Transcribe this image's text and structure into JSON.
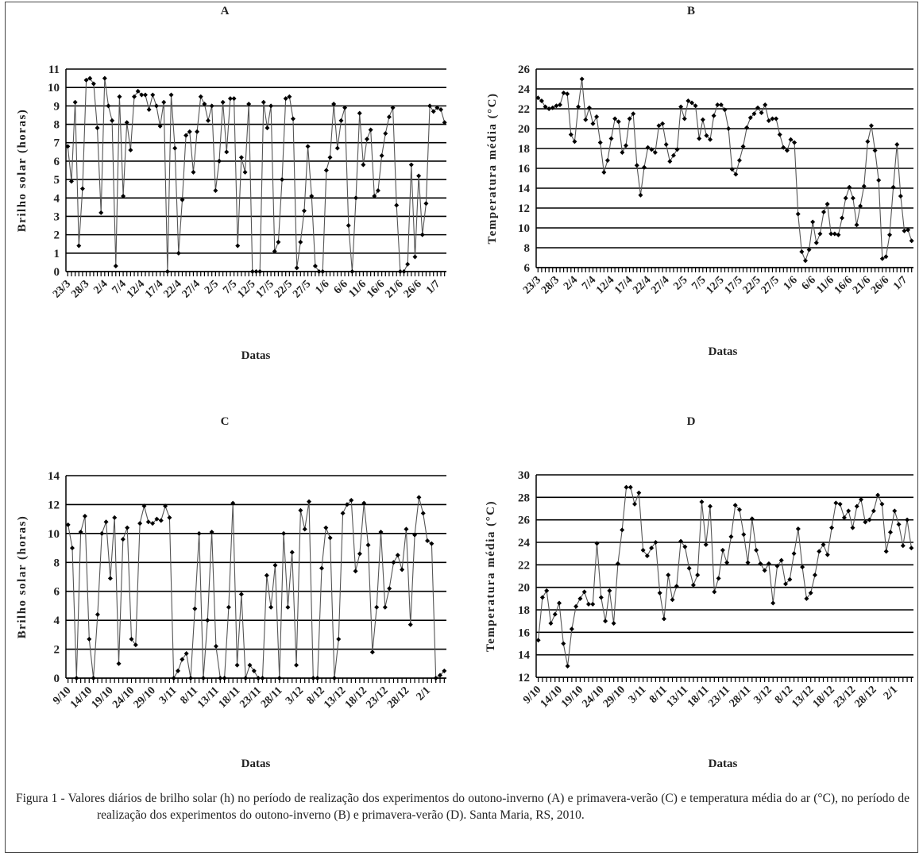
{
  "chart_data": [
    {
      "type": "line",
      "title": "A",
      "ylabel": "Brilho solar (horas)",
      "xlabel": "Datas",
      "categories": [
        "23/3",
        null,
        null,
        null,
        null,
        "28/3",
        null,
        null,
        null,
        null,
        "2/4",
        null,
        null,
        null,
        null,
        "7/4",
        null,
        null,
        null,
        null,
        "12/4",
        null,
        null,
        null,
        null,
        "17/4",
        null,
        null,
        null,
        null,
        "22/4",
        null,
        null,
        null,
        null,
        "27/4",
        null,
        null,
        null,
        null,
        "2/5",
        null,
        null,
        null,
        null,
        "7/5",
        null,
        null,
        null,
        null,
        "12/5",
        null,
        null,
        null,
        null,
        "17/5",
        null,
        null,
        null,
        null,
        "22/5",
        null,
        null,
        null,
        null,
        "27/5",
        null,
        null,
        null,
        null,
        "1/6",
        null,
        null,
        null,
        null,
        "6/6",
        null,
        null,
        null,
        null,
        "11/6",
        null,
        null,
        null,
        null,
        "16/6",
        null,
        null,
        null,
        null,
        "21/6",
        null,
        null,
        null,
        null,
        "26/6",
        null,
        null,
        null,
        null,
        "1/7",
        null,
        null
      ],
      "values": [
        6.8,
        4.9,
        9.2,
        1.4,
        4.5,
        10.4,
        10.5,
        10.2,
        7.8,
        3.2,
        10.5,
        9.0,
        8.2,
        0.3,
        9.5,
        4.1,
        8.1,
        6.6,
        9.5,
        9.8,
        9.6,
        9.6,
        8.8,
        9.6,
        9.0,
        7.9,
        9.2,
        0.0,
        9.6,
        6.7,
        1.0,
        3.9,
        7.4,
        7.6,
        5.4,
        7.6,
        9.5,
        9.1,
        8.2,
        9.0,
        4.4,
        6.0,
        9.2,
        6.5,
        9.4,
        9.4,
        1.4,
        6.2,
        5.4,
        9.1,
        0.0,
        0.0,
        0.0,
        9.2,
        7.8,
        9.0,
        1.1,
        1.6,
        5.0,
        9.4,
        9.5,
        8.3,
        0.2,
        1.6,
        3.3,
        6.8,
        4.1,
        0.3,
        0.0,
        0.0,
        5.5,
        6.2,
        9.1,
        6.7,
        8.2,
        8.9,
        2.5,
        0.0,
        4.0,
        8.6,
        5.8,
        7.2,
        7.7,
        4.1,
        4.4,
        6.3,
        7.5,
        8.4,
        8.9,
        3.6,
        0.0,
        0.0,
        0.4,
        5.8,
        0.8,
        5.2,
        2.0,
        3.7,
        9.0,
        8.7,
        8.9,
        8.8,
        8.1
      ],
      "color": "#555555",
      "marker_color": "#000000",
      "ylim": [
        0,
        11
      ],
      "yticks": [
        0,
        1,
        2,
        3,
        4,
        5,
        6,
        7,
        8,
        9,
        10,
        11
      ],
      "grid": true
    },
    {
      "type": "line",
      "title": "B",
      "ylabel": "Temperatura média (°C)",
      "xlabel": "Datas",
      "categories": [
        "23/3",
        null,
        null,
        null,
        null,
        "28/3",
        null,
        null,
        null,
        null,
        "2/4",
        null,
        null,
        null,
        null,
        "7/4",
        null,
        null,
        null,
        null,
        "12/4",
        null,
        null,
        null,
        null,
        "17/4",
        null,
        null,
        null,
        null,
        "22/4",
        null,
        null,
        null,
        null,
        "27/4",
        null,
        null,
        null,
        null,
        "2/5",
        null,
        null,
        null,
        null,
        "7/5",
        null,
        null,
        null,
        null,
        "12/5",
        null,
        null,
        null,
        null,
        "17/5",
        null,
        null,
        null,
        null,
        "22/5",
        null,
        null,
        null,
        null,
        "27/5",
        null,
        null,
        null,
        null,
        "1/6",
        null,
        null,
        null,
        null,
        "6/6",
        null,
        null,
        null,
        null,
        "11/6",
        null,
        null,
        null,
        null,
        "16/6",
        null,
        null,
        null,
        null,
        "21/6",
        null,
        null,
        null,
        null,
        "26/6",
        null,
        null,
        null,
        null,
        "1/7",
        null,
        null
      ],
      "values": [
        23.1,
        22.8,
        22.2,
        22.0,
        22.1,
        22.3,
        22.4,
        23.6,
        23.5,
        19.4,
        18.7,
        22.2,
        25.0,
        20.9,
        22.1,
        20.5,
        21.2,
        18.6,
        15.6,
        16.8,
        19.0,
        21.0,
        20.7,
        17.6,
        18.3,
        21.0,
        21.5,
        16.3,
        13.3,
        16.1,
        18.1,
        17.9,
        17.6,
        20.3,
        20.5,
        18.4,
        16.7,
        17.3,
        17.9,
        22.2,
        21.0,
        22.8,
        22.6,
        22.3,
        19.0,
        20.9,
        19.3,
        18.9,
        21.3,
        22.4,
        22.4,
        21.9,
        20.0,
        15.9,
        15.4,
        16.8,
        18.2,
        20.1,
        21.1,
        21.5,
        22.1,
        21.6,
        22.4,
        20.8,
        21.0,
        21.0,
        19.4,
        18.1,
        17.8,
        18.9,
        18.6,
        11.4,
        7.6,
        6.7,
        7.8,
        10.6,
        8.5,
        9.4,
        11.6,
        12.4,
        9.4,
        9.4,
        9.3,
        11.0,
        13.0,
        14.1,
        13.0,
        10.3,
        12.2,
        14.2,
        18.7,
        20.3,
        17.8,
        14.8,
        6.9,
        7.1,
        9.3,
        14.1,
        18.4,
        13.2,
        9.7,
        9.8,
        8.7
      ],
      "color": "#555555",
      "marker_color": "#000000",
      "ylim": [
        6,
        26
      ],
      "yticks": [
        6,
        8,
        10,
        12,
        14,
        16,
        18,
        20,
        22,
        24,
        26
      ],
      "grid": true
    },
    {
      "type": "line",
      "title": "C",
      "ylabel": "Brilho solar (horas)",
      "xlabel": "Datas",
      "categories": [
        "9/10",
        null,
        null,
        null,
        null,
        "14/10",
        null,
        null,
        null,
        null,
        "19/10",
        null,
        null,
        null,
        null,
        "24/10",
        null,
        null,
        null,
        null,
        "29/10",
        null,
        null,
        null,
        null,
        "3/11",
        null,
        null,
        null,
        null,
        "8/11",
        null,
        null,
        null,
        null,
        "13/11",
        null,
        null,
        null,
        null,
        "18/11",
        null,
        null,
        null,
        null,
        "23/11",
        null,
        null,
        null,
        null,
        "28/11",
        null,
        null,
        null,
        null,
        "3/12",
        null,
        null,
        null,
        null,
        "8/12",
        null,
        null,
        null,
        null,
        "13/12",
        null,
        null,
        null,
        null,
        "18/12",
        null,
        null,
        null,
        null,
        "23/12",
        null,
        null,
        null,
        null,
        "28/12",
        null,
        null,
        null,
        null,
        "2/1",
        null,
        null,
        null,
        null
      ],
      "values": [
        10.6,
        9.0,
        0.0,
        10.1,
        11.2,
        2.7,
        0.0,
        4.4,
        10.0,
        10.8,
        6.9,
        11.1,
        1.0,
        9.6,
        10.4,
        2.7,
        2.3,
        10.7,
        11.9,
        10.8,
        10.7,
        11.0,
        10.9,
        11.9,
        11.1,
        0.0,
        0.5,
        1.3,
        1.7,
        0.0,
        4.8,
        10.0,
        0.0,
        4.0,
        10.1,
        2.2,
        0.0,
        0.0,
        4.9,
        12.1,
        0.9,
        5.8,
        0.0,
        0.9,
        0.5,
        0.0,
        0.0,
        7.1,
        4.9,
        7.8,
        0.0,
        10.0,
        4.9,
        8.7,
        0.9,
        11.6,
        10.3,
        12.2,
        0.0,
        0.0,
        7.6,
        10.4,
        9.7,
        0.0,
        2.7,
        11.4,
        12.0,
        12.3,
        7.4,
        8.6,
        12.1,
        9.2,
        1.8,
        4.9,
        10.1,
        4.9,
        6.2,
        8.0,
        8.5,
        7.5,
        10.3,
        3.7,
        9.9,
        12.5,
        11.4,
        9.5,
        9.3,
        0.0,
        0.2,
        0.5
      ],
      "color": "#555555",
      "marker_color": "#000000",
      "ylim": [
        0,
        14
      ],
      "yticks": [
        0,
        2,
        4,
        6,
        8,
        10,
        12,
        14
      ],
      "grid": true
    },
    {
      "type": "line",
      "title": "D",
      "ylabel": "Temperatura média (°C)",
      "xlabel": "Datas",
      "categories": [
        "9/10",
        null,
        null,
        null,
        null,
        "14/10",
        null,
        null,
        null,
        null,
        "19/10",
        null,
        null,
        null,
        null,
        "24/10",
        null,
        null,
        null,
        null,
        "29/10",
        null,
        null,
        null,
        null,
        "3/11",
        null,
        null,
        null,
        null,
        "8/11",
        null,
        null,
        null,
        null,
        "13/11",
        null,
        null,
        null,
        null,
        "18/11",
        null,
        null,
        null,
        null,
        "23/11",
        null,
        null,
        null,
        null,
        "28/11",
        null,
        null,
        null,
        null,
        "3/12",
        null,
        null,
        null,
        null,
        "8/12",
        null,
        null,
        null,
        null,
        "13/12",
        null,
        null,
        null,
        null,
        "18/12",
        null,
        null,
        null,
        null,
        "23/12",
        null,
        null,
        null,
        null,
        "28/12",
        null,
        null,
        null,
        null,
        "2/1",
        null,
        null,
        null,
        null
      ],
      "values": [
        15.3,
        19.1,
        19.7,
        16.8,
        17.6,
        18.6,
        15.0,
        13.0,
        16.3,
        18.3,
        19.0,
        19.6,
        18.5,
        18.5,
        23.9,
        19.1,
        17.0,
        19.7,
        16.8,
        22.1,
        25.1,
        28.9,
        28.9,
        27.4,
        28.4,
        23.3,
        22.8,
        23.5,
        24.0,
        19.5,
        17.2,
        21.1,
        18.9,
        20.1,
        24.1,
        23.6,
        21.7,
        20.2,
        21.1,
        27.6,
        23.8,
        27.2,
        19.6,
        20.8,
        23.3,
        22.2,
        24.5,
        27.3,
        26.9,
        24.7,
        22.2,
        26.1,
        23.3,
        22.1,
        21.5,
        22.1,
        18.6,
        21.9,
        22.4,
        20.3,
        20.7,
        23.0,
        25.2,
        21.8,
        19.0,
        19.5,
        21.1,
        23.2,
        23.8,
        22.9,
        25.3,
        27.5,
        27.4,
        26.2,
        26.8,
        25.3,
        27.2,
        27.8,
        25.8,
        26.0,
        26.8,
        28.2,
        27.4,
        23.2,
        24.9,
        26.8,
        25.6,
        23.7,
        26.0,
        23.5
      ],
      "color": "#555555",
      "marker_color": "#000000",
      "ylim": [
        12,
        30
      ],
      "yticks": [
        12,
        14,
        16,
        18,
        20,
        22,
        24,
        26,
        28,
        30
      ],
      "grid": true
    }
  ],
  "caption": {
    "label": "Figura 1 -",
    "text": "Valores diários de brilho solar (h) no período de realização dos experimentos do outono-inverno (A) e primavera-verão (C) e temperatura média do ar (°C), no período de realização dos experimentos do outono-inverno (B) e primavera-verão (D). Santa Maria, RS, 2010."
  }
}
